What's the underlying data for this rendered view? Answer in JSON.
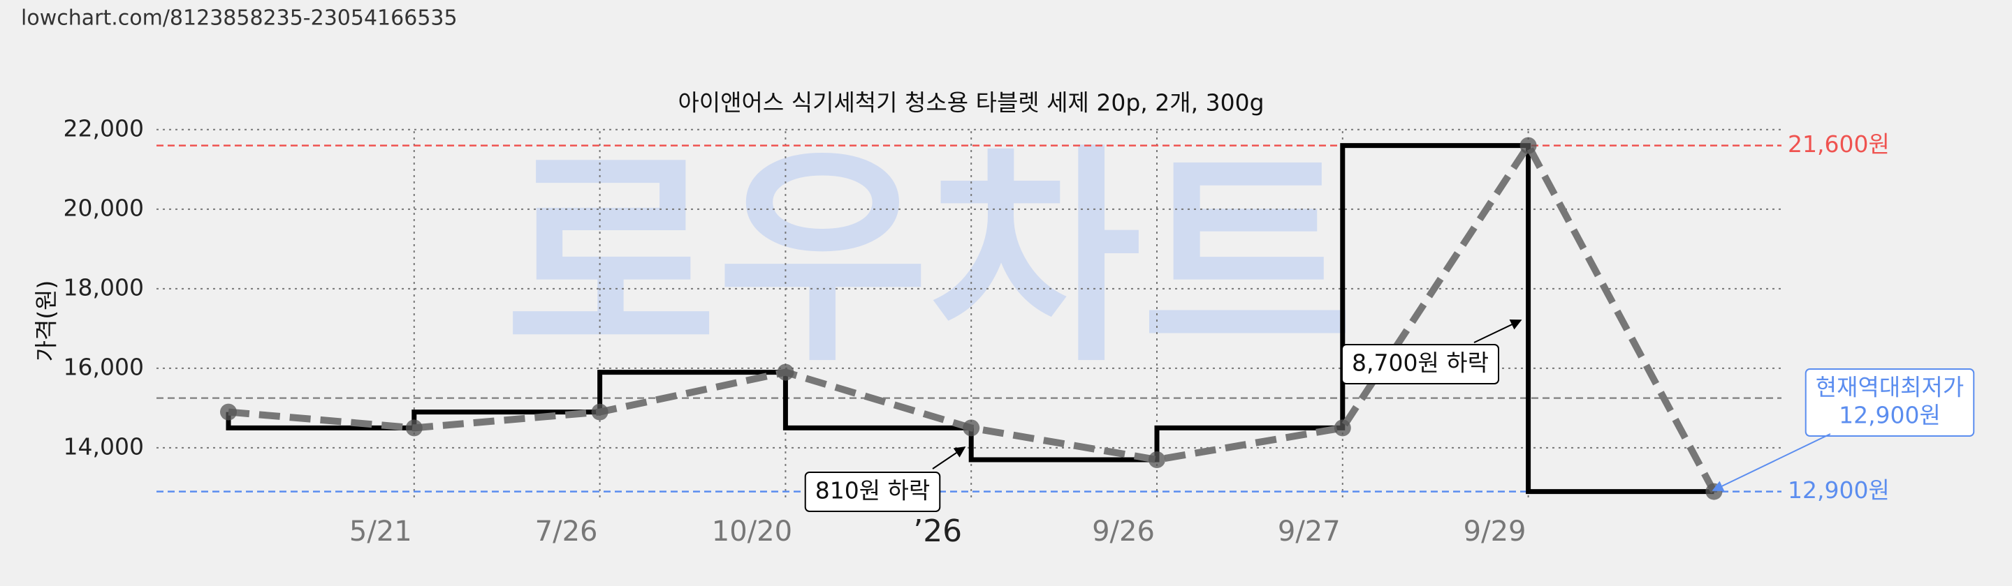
{
  "url": "lowchart.com/8123858235-23054166535",
  "chart_data": {
    "type": "price-step",
    "title": "아이앤어스 식기세척기 청소용 타블렛 세제 20p, 2개, 300g",
    "y_label": "가격(원)",
    "watermark": "로우차트",
    "categories": [
      null,
      "5/21",
      "7/26",
      "10/20",
      "’26",
      "9/26",
      "9/27",
      "9/29",
      null
    ],
    "values": [
      14900,
      14500,
      14900,
      15900,
      14500,
      13700,
      14500,
      21600,
      12900
    ],
    "step_color": "#000000",
    "line_color": "#777777",
    "grid": true,
    "ylim": [
      12700,
      22400
    ],
    "yticks": [
      {
        "value": 14000,
        "label": "14,000"
      },
      {
        "value": 16000,
        "label": "16,000"
      },
      {
        "value": 18000,
        "label": "18,000"
      },
      {
        "value": 20000,
        "label": "20,000"
      },
      {
        "value": 22000,
        "label": "22,000"
      }
    ],
    "reference_lines": [
      {
        "value": 21600,
        "label": "21,600원",
        "color": "#ef5350"
      },
      {
        "value": 15250,
        "color": "#888888"
      },
      {
        "value": 12900,
        "label": "12,900원",
        "color": "#5b8def"
      }
    ],
    "annotations": [
      {
        "text": "8,700원 하락"
      },
      {
        "text": "810원 하락"
      },
      {
        "text": [
          "현재역대최저가",
          "12,900원"
        ]
      }
    ]
  }
}
